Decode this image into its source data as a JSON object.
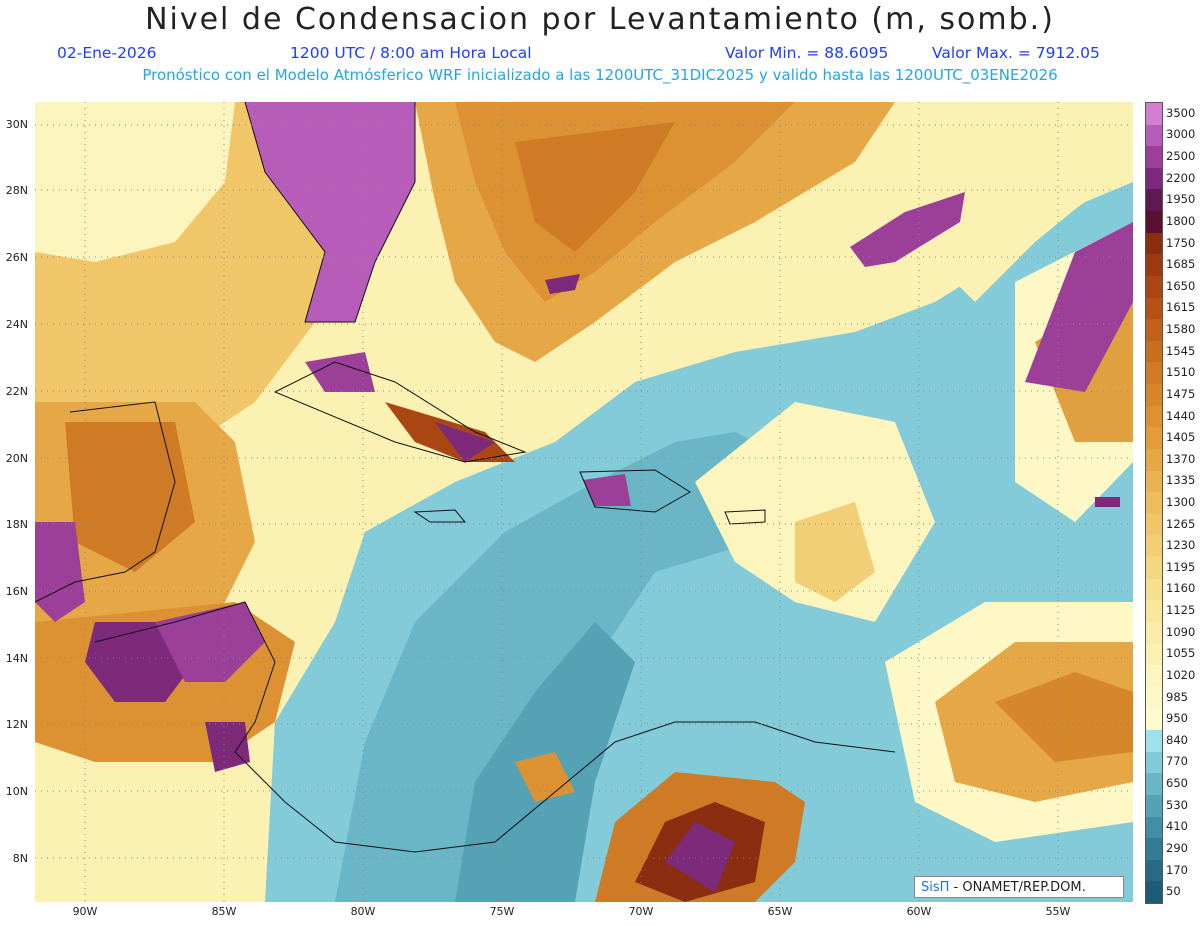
{
  "header": {
    "title": "Nivel de Condensacion por Levantamiento (m, somb.)",
    "date": "02-Ene-2026",
    "time": "1200 UTC / 8:00 am Hora Local",
    "min_label": "Valor Min. = 88.6095",
    "max_label": "Valor Max. = 7912.05",
    "subtitle": "Pronóstico con el Modelo Atmósferico WRF inicializado a las 1200UTC_31DIC2025 y valido hasta las  1200UTC_03ENE2026"
  },
  "axes": {
    "lat_labels": [
      "30N",
      "28N",
      "26N",
      "24N",
      "22N",
      "20N",
      "18N",
      "16N",
      "14N",
      "12N",
      "10N",
      "8N"
    ],
    "lon_labels": [
      "90W",
      "85W",
      "80W",
      "75W",
      "70W",
      "65W",
      "60W",
      "55W"
    ]
  },
  "legend": {
    "labels": [
      "3500",
      "3000",
      "2500",
      "2200",
      "1950",
      "1800",
      "1750",
      "1685",
      "1650",
      "1615",
      "1580",
      "1545",
      "1510",
      "1475",
      "1440",
      "1405",
      "1370",
      "1335",
      "1300",
      "1265",
      "1230",
      "1195",
      "1160",
      "1125",
      "1090",
      "1055",
      "1020",
      "985",
      "950",
      "840",
      "770",
      "650",
      "530",
      "410",
      "290",
      "170",
      "50"
    ],
    "colors": [
      "#d27fd0",
      "#b75cb8",
      "#9b3f99",
      "#7d2a7a",
      "#5c1a50",
      "#5a1030",
      "#8a2d10",
      "#9d3a12",
      "#aa4614",
      "#b65216",
      "#c0601a",
      "#c86e1f",
      "#cf7a24",
      "#d6862b",
      "#dc9233",
      "#e19d3c",
      "#e6a847",
      "#eab352",
      "#edbd5d",
      "#f0c669",
      "#f2cf76",
      "#f4d783",
      "#f6df90",
      "#f8e69c",
      "#f9eca8",
      "#fbf1b3",
      "#fcf5bd",
      "#fdf8c6",
      "#fefbd0",
      "#9fe0ea",
      "#83cbd8",
      "#6ab6c6",
      "#54a2b4",
      "#428ea3",
      "#337c93",
      "#286c84",
      "#1e5c76"
    ]
  },
  "credit": {
    "brand": "SisΠ",
    "org": " - ONAMET/REP.DOM."
  },
  "colors": {
    "ocean_low": "#7cc9d4",
    "land_high": "#e3a24a",
    "purple": "#a85fae"
  }
}
